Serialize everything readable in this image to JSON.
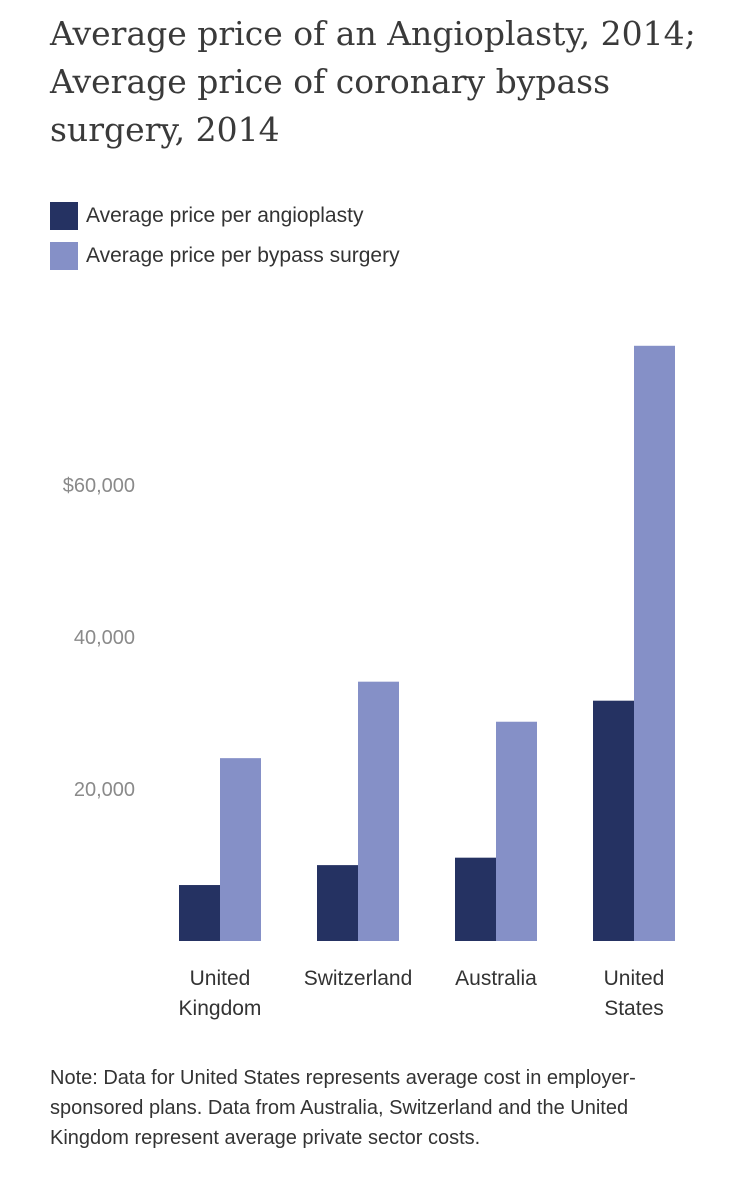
{
  "title_lines": [
    "Average price of an Angioplasty, 2014;",
    "Average price of coronary bypass",
    "surgery, 2014"
  ],
  "legend": [
    {
      "label": "Average price per angioplasty",
      "color": "#253262"
    },
    {
      "label": "Average price per bypass surgery",
      "color": "#8590c7"
    }
  ],
  "note": "Note: Data for United States represents average cost in employer-sponsored plans. Data from Australia, Switzerland and the United Kingdom represent average private sector costs.",
  "chart_data": {
    "type": "bar",
    "categories": [
      [
        "United",
        "Kingdom"
      ],
      [
        "Switzerland"
      ],
      [
        "Australia"
      ],
      [
        "United",
        "States"
      ]
    ],
    "series": [
      {
        "name": "Average price per angioplasty",
        "color": "#253262",
        "values": [
          7364,
          9985,
          10964,
          31620
        ]
      },
      {
        "name": "Average price per bypass surgery",
        "color": "#8590c7",
        "values": [
          24059,
          34121,
          28851,
          78318
        ]
      }
    ],
    "y_ticks": [
      {
        "value": 20000,
        "label": "20,000"
      },
      {
        "value": 40000,
        "label": "40,000"
      },
      {
        "value": 60000,
        "label": "$60,000"
      }
    ],
    "ylim": [
      0,
      80000
    ],
    "grid": false
  }
}
